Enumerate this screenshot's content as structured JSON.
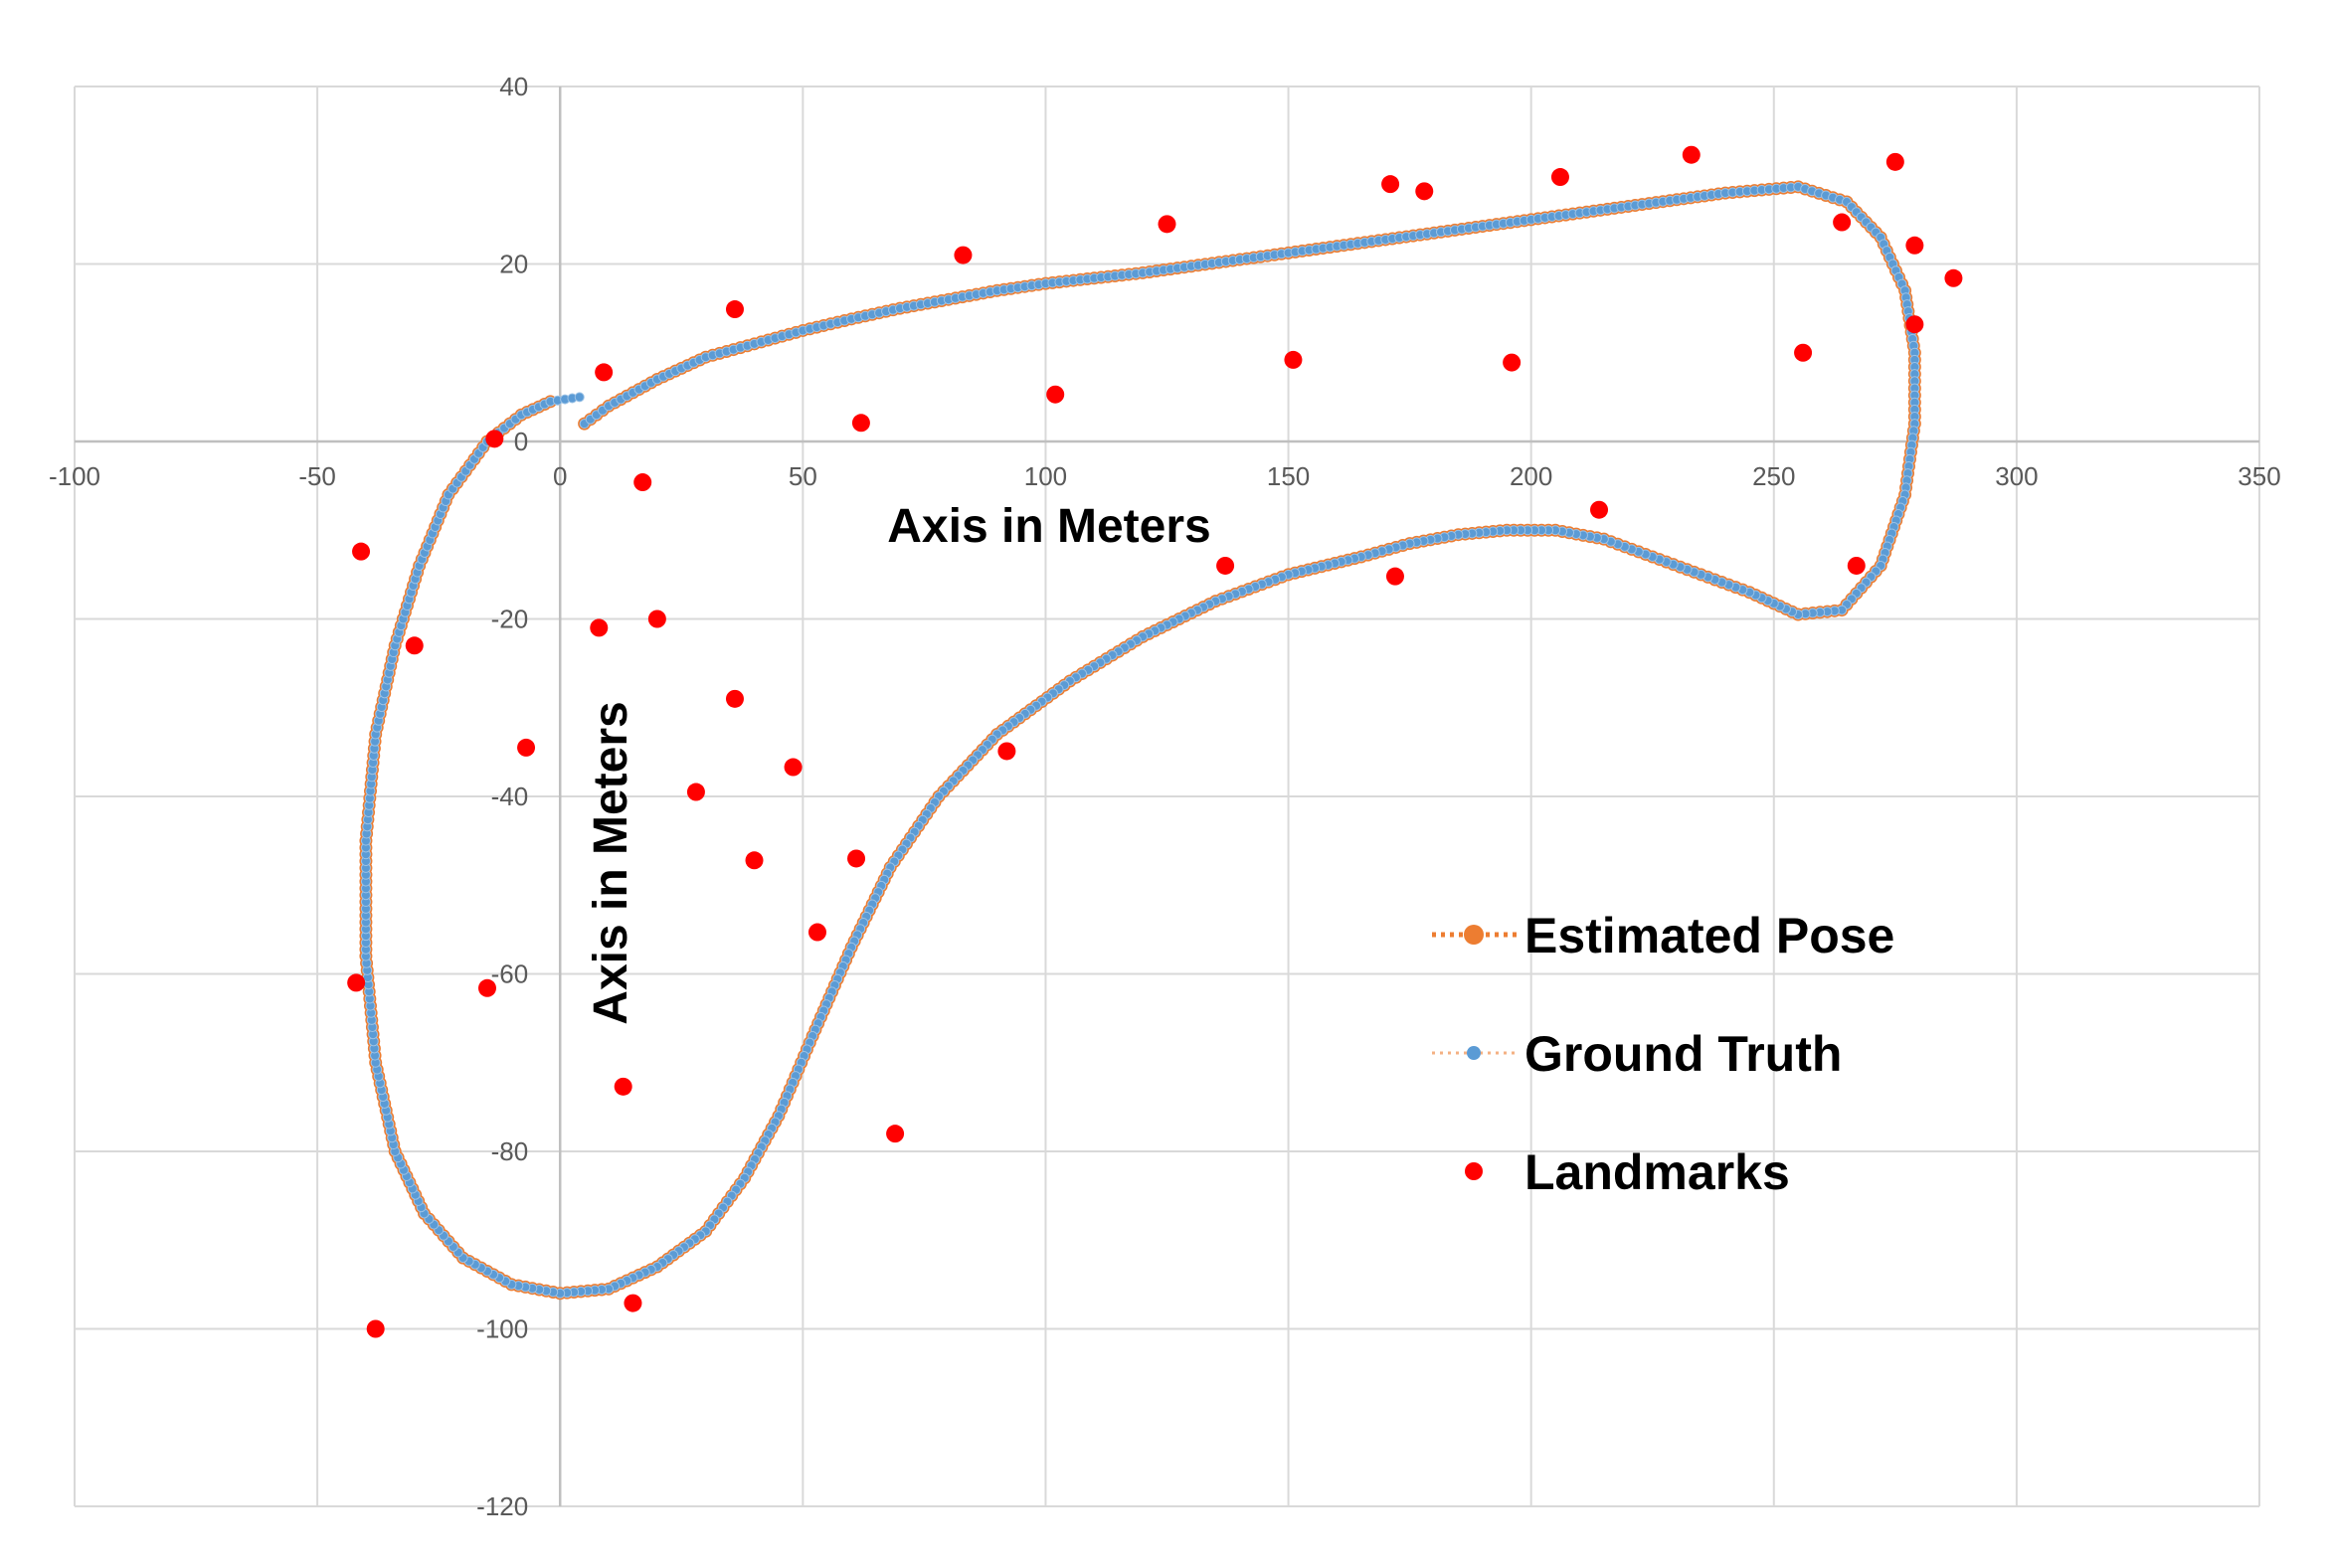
{
  "chart_data": {
    "type": "scatter",
    "title": "",
    "xlabel": "Axis in Meters",
    "ylabel": "Axis in Meters",
    "xlim": [
      -100,
      350
    ],
    "ylim": [
      -120,
      40
    ],
    "x_ticks": [
      -100,
      -50,
      0,
      50,
      100,
      150,
      200,
      250,
      300,
      350
    ],
    "y_ticks": [
      40,
      20,
      0,
      -20,
      -40,
      -60,
      -80,
      -100,
      -120
    ],
    "grid": true,
    "legend_position": "right",
    "colors": {
      "estimated": "#ED7D31",
      "truth": "#5B9BD5",
      "landmarks": "#FF0000"
    },
    "series": [
      {
        "name": "Estimated Pose",
        "style": "dotted-line-with-markers",
        "points": [
          [
            5,
            2
          ],
          [
            10,
            4
          ],
          [
            20,
            7
          ],
          [
            30,
            9.5
          ],
          [
            40,
            11
          ],
          [
            50,
            12.5
          ],
          [
            60,
            13.8
          ],
          [
            70,
            15
          ],
          [
            80,
            16
          ],
          [
            90,
            17
          ],
          [
            100,
            17.8
          ],
          [
            120,
            19
          ],
          [
            140,
            20.5
          ],
          [
            160,
            22
          ],
          [
            180,
            23.5
          ],
          [
            200,
            25
          ],
          [
            220,
            26.5
          ],
          [
            240,
            28
          ],
          [
            255,
            28.7
          ],
          [
            265,
            27
          ],
          [
            272,
            23
          ],
          [
            277,
            17
          ],
          [
            279,
            10
          ],
          [
            279,
            2
          ],
          [
            277,
            -6
          ],
          [
            272,
            -14
          ],
          [
            264,
            -19
          ],
          [
            255,
            -19.5
          ],
          [
            245,
            -17
          ],
          [
            235,
            -15
          ],
          [
            225,
            -13
          ],
          [
            215,
            -11
          ],
          [
            205,
            -10
          ],
          [
            195,
            -10
          ],
          [
            185,
            -10.5
          ],
          [
            175,
            -11.5
          ],
          [
            165,
            -13
          ],
          [
            150,
            -15
          ],
          [
            135,
            -18
          ],
          [
            120,
            -22
          ],
          [
            105,
            -27
          ],
          [
            90,
            -33
          ],
          [
            78,
            -40
          ],
          [
            68,
            -48
          ],
          [
            60,
            -57
          ],
          [
            52,
            -67
          ],
          [
            45,
            -76
          ],
          [
            38,
            -83
          ],
          [
            30,
            -89
          ],
          [
            20,
            -93
          ],
          [
            10,
            -95.5
          ],
          [
            0,
            -96
          ],
          [
            -10,
            -95
          ],
          [
            -20,
            -92
          ],
          [
            -28,
            -87
          ],
          [
            -34,
            -80
          ],
          [
            -38,
            -70
          ],
          [
            -40,
            -58
          ],
          [
            -40,
            -45
          ],
          [
            -38,
            -33
          ],
          [
            -34,
            -23
          ],
          [
            -29,
            -14
          ],
          [
            -23,
            -6
          ],
          [
            -15,
            0
          ],
          [
            -8,
            3
          ],
          [
            -2,
            4.5
          ]
        ]
      },
      {
        "name": "Ground Truth",
        "style": "dotted-line-with-markers",
        "points": [
          [
            5,
            2
          ],
          [
            10,
            4
          ],
          [
            20,
            7
          ],
          [
            30,
            9.5
          ],
          [
            40,
            11
          ],
          [
            50,
            12.5
          ],
          [
            60,
            13.8
          ],
          [
            70,
            15
          ],
          [
            80,
            16
          ],
          [
            90,
            17
          ],
          [
            100,
            17.8
          ],
          [
            120,
            19
          ],
          [
            140,
            20.5
          ],
          [
            160,
            22
          ],
          [
            180,
            23.5
          ],
          [
            200,
            25
          ],
          [
            220,
            26.5
          ],
          [
            240,
            28
          ],
          [
            255,
            28.7
          ],
          [
            265,
            27
          ],
          [
            272,
            23
          ],
          [
            277,
            17
          ],
          [
            279,
            10
          ],
          [
            279,
            2
          ],
          [
            277,
            -6
          ],
          [
            272,
            -14
          ],
          [
            264,
            -19
          ],
          [
            255,
            -19.5
          ],
          [
            245,
            -17
          ],
          [
            235,
            -15
          ],
          [
            225,
            -13
          ],
          [
            215,
            -11
          ],
          [
            205,
            -10
          ],
          [
            195,
            -10
          ],
          [
            185,
            -10.5
          ],
          [
            175,
            -11.5
          ],
          [
            165,
            -13
          ],
          [
            150,
            -15
          ],
          [
            135,
            -18
          ],
          [
            120,
            -22
          ],
          [
            105,
            -27
          ],
          [
            90,
            -33
          ],
          [
            78,
            -40
          ],
          [
            68,
            -48
          ],
          [
            60,
            -57
          ],
          [
            52,
            -67
          ],
          [
            45,
            -76
          ],
          [
            38,
            -83
          ],
          [
            30,
            -89
          ],
          [
            20,
            -93
          ],
          [
            10,
            -95.5
          ],
          [
            0,
            -96
          ],
          [
            -10,
            -95
          ],
          [
            -20,
            -92
          ],
          [
            -28,
            -87
          ],
          [
            -34,
            -80
          ],
          [
            -38,
            -70
          ],
          [
            -40,
            -58
          ],
          [
            -40,
            -45
          ],
          [
            -38,
            -33
          ],
          [
            -34,
            -23
          ],
          [
            -29,
            -14
          ],
          [
            -23,
            -6
          ],
          [
            -15,
            0
          ],
          [
            -8,
            3
          ],
          [
            -2,
            4.5
          ],
          [
            4,
            5
          ]
        ]
      },
      {
        "name": "Landmarks",
        "style": "markers-only",
        "points": [
          [
            -13.5,
            0.3
          ],
          [
            9,
            7.8
          ],
          [
            17,
            -4.6
          ],
          [
            -41,
            -12.4
          ],
          [
            -30,
            -23
          ],
          [
            8,
            -21
          ],
          [
            20,
            -20
          ],
          [
            36,
            14.9
          ],
          [
            -7,
            -34.5
          ],
          [
            28,
            -39.5
          ],
          [
            36,
            -29
          ],
          [
            48,
            -36.7
          ],
          [
            40,
            -47.2
          ],
          [
            61,
            -47
          ],
          [
            53,
            -55.3
          ],
          [
            -15,
            -61.6
          ],
          [
            -42,
            -61
          ],
          [
            13,
            -72.7
          ],
          [
            69,
            -78
          ],
          [
            -38,
            -100
          ],
          [
            15,
            -97.1
          ],
          [
            62,
            2.1
          ],
          [
            83,
            21
          ],
          [
            92,
            -34.9
          ],
          [
            102,
            5.3
          ],
          [
            125,
            24.5
          ],
          [
            137,
            -14
          ],
          [
            151,
            9.2
          ],
          [
            171,
            29
          ],
          [
            172,
            -15.2
          ],
          [
            178,
            28.2
          ],
          [
            196,
            8.9
          ],
          [
            206,
            29.8
          ],
          [
            214,
            -7.7
          ],
          [
            233,
            32.3
          ],
          [
            256,
            10
          ],
          [
            264,
            24.7
          ],
          [
            267,
            -14
          ],
          [
            275,
            31.5
          ],
          [
            279,
            22.1
          ],
          [
            279,
            13.2
          ],
          [
            287,
            18.4
          ]
        ]
      }
    ]
  }
}
